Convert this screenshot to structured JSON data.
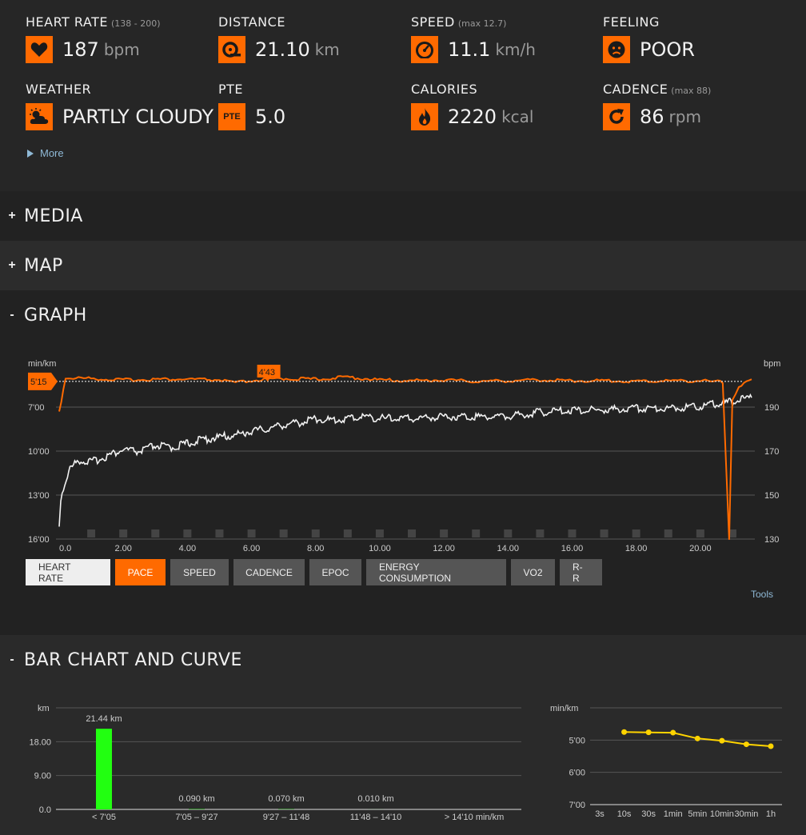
{
  "summary": {
    "heart_rate": {
      "label": "HEART RATE",
      "range": "(138 - 200)",
      "value": "187",
      "unit": "bpm"
    },
    "distance": {
      "label": "DISTANCE",
      "value": "21.10",
      "unit": "km"
    },
    "speed": {
      "label": "SPEED",
      "range": "(max 12.7)",
      "value": "11.1",
      "unit": "km/h"
    },
    "feeling": {
      "label": "FEELING",
      "value": "POOR"
    },
    "weather": {
      "label": "WEATHER",
      "value": "PARTLY CLOUDY"
    },
    "pte": {
      "label": "PTE",
      "icon_text": "PTE",
      "value": "5.0"
    },
    "calories": {
      "label": "CALORIES",
      "value": "2220",
      "unit": "kcal"
    },
    "cadence": {
      "label": "CADENCE",
      "range": "(max 88)",
      "value": "86",
      "unit": "rpm"
    },
    "more_label": "More"
  },
  "sections": {
    "media": {
      "toggle": "+",
      "title": "MEDIA"
    },
    "map": {
      "toggle": "+",
      "title": "MAP"
    },
    "graph": {
      "toggle": "-",
      "title": "GRAPH"
    },
    "bar": {
      "toggle": "-",
      "title": "BAR CHART AND CURVE"
    }
  },
  "graph_buttons": [
    "HEART RATE",
    "PACE",
    "SPEED",
    "CADENCE",
    "EPOC",
    "ENERGY CONSUMPTION",
    "VO2",
    "R-R"
  ],
  "tools_label": "Tools",
  "accent_color": "#ff6a00",
  "chart_data": [
    {
      "type": "line",
      "left_axis_unit": "min/km",
      "right_axis_unit": "bpm",
      "x_ticks": [
        "0.0",
        "2.00",
        "4.00",
        "6.00",
        "8.00",
        "10.00",
        "12.00",
        "14.00",
        "16.00",
        "18.00",
        "20.00"
      ],
      "x_range": [
        0,
        21.6
      ],
      "left_ticks": [
        "7'00",
        "10'00",
        "13'00",
        "16'00"
      ],
      "right_ticks": [
        "190",
        "170",
        "150",
        "130"
      ],
      "pace_avg_marker": "5'15",
      "pace_best_marker": "4'43",
      "pace_best_at_km": 6.5,
      "series": [
        {
          "name": "PACE",
          "color": "#ff6a00",
          "x": [
            0,
            0.2,
            1,
            2,
            3,
            4,
            5,
            5.5,
            6,
            7,
            8,
            9,
            10,
            11,
            12,
            13,
            14,
            15,
            16,
            17,
            18,
            19,
            20,
            20.7,
            20.9,
            21.0,
            21.2,
            21.6
          ],
          "y": [
            7.3,
            5.0,
            5.05,
            5.15,
            5.1,
            5.1,
            5.15,
            5.35,
            5.2,
            5.05,
            5.1,
            4.95,
            5.15,
            5.2,
            5.15,
            5.25,
            5.2,
            5.15,
            5.2,
            5.2,
            5.25,
            5.2,
            5.2,
            5.3,
            16.0,
            6.5,
            5.6,
            5.1
          ]
        },
        {
          "name": "HEART RATE",
          "color": "#ffffff",
          "x": [
            0,
            0.05,
            0.3,
            0.6,
            1,
            1.5,
            2,
            2.5,
            3,
            3.5,
            4,
            4.5,
            5,
            5.5,
            6,
            6.5,
            7,
            7.5,
            8,
            8.5,
            9,
            9.5,
            10,
            11,
            12,
            13,
            14,
            15,
            16,
            17,
            18,
            19,
            20,
            20.5,
            21,
            21.6
          ],
          "y": [
            136,
            150,
            163,
            168,
            167,
            170,
            173,
            172,
            175,
            174,
            176,
            178,
            179,
            180,
            182,
            183,
            185,
            186,
            188,
            187,
            188,
            189,
            188,
            188,
            189,
            189,
            189,
            191,
            192,
            192,
            193,
            193,
            194,
            195,
            196,
            198
          ]
        }
      ]
    },
    {
      "type": "bar",
      "ylabel": "km",
      "y_ticks": [
        "0.0",
        "9.00",
        "18.00"
      ],
      "ylim": [
        0,
        27
      ],
      "categories": [
        "< 7'05",
        "7'05 – 9'27",
        "9'27 – 11'48",
        "11'48 – 14'10",
        "> 14'10 min/km"
      ],
      "values": [
        21.44,
        0.09,
        0.07,
        0.01,
        0
      ],
      "data_labels": [
        "21.44 km",
        "0.090 km",
        "0.070 km",
        "0.010 km",
        ""
      ],
      "bar_color": "#22ff11"
    },
    {
      "type": "line",
      "ylabel": "min/km",
      "y_ticks": [
        "5'00",
        "6'00",
        "7'00"
      ],
      "categories": [
        "3s",
        "10s",
        "30s",
        "1min",
        "5min",
        "10min",
        "30min",
        "1h"
      ],
      "values": [
        null,
        4.75,
        4.76,
        4.77,
        4.95,
        5.02,
        5.13,
        5.19
      ],
      "ylim": [
        4.0,
        7.0
      ],
      "color": "#ffd400"
    }
  ]
}
